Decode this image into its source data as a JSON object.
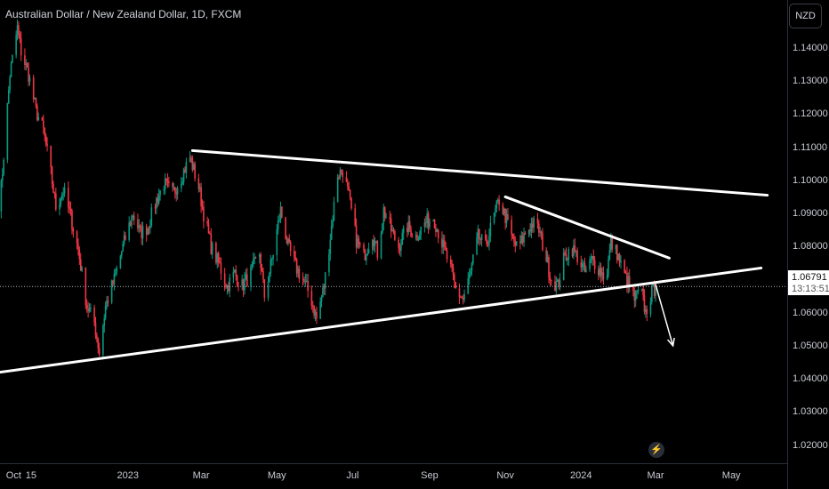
{
  "header": {
    "title": "Australian Dollar / New Zealand Dollar, 1D, FXCM",
    "currency": "NZD"
  },
  "price_tag": {
    "price": "1.06791",
    "countdown": "13:13:51"
  },
  "colors": {
    "up": "#089981",
    "down": "#f23645",
    "background": "#000000",
    "trendline": "#ffffff"
  },
  "icons": {
    "event": "lightning-icon"
  },
  "chart_data": {
    "type": "candlestick",
    "title": "Australian Dollar / New Zealand Dollar, 1D, FXCM",
    "xlabel": "",
    "ylabel": "",
    "x_ticks": [
      "Oct",
      "15",
      "2023",
      "Mar",
      "May",
      "Jul",
      "Sep",
      "Nov",
      "2024",
      "Mar",
      "May"
    ],
    "y_ticks": [
      "1.14000",
      "1.13000",
      "1.12000",
      "1.11000",
      "1.10000",
      "1.09000",
      "1.08000",
      "1.07000",
      "1.06000",
      "1.05000",
      "1.04000",
      "1.03000",
      "1.02000"
    ],
    "ylim": [
      1.0145,
      1.1545
    ],
    "xlim": [
      "2022-09-20",
      "2024-06-15"
    ],
    "grid": false,
    "last_price": 1.06791,
    "path": [
      [
        "2022-09-20",
        1.093
      ],
      [
        "2022-09-28",
        1.132
      ],
      [
        "2022-10-04",
        1.146
      ],
      [
        "2022-10-07",
        1.139
      ],
      [
        "2022-10-13",
        1.132
      ],
      [
        "2022-10-19",
        1.121
      ],
      [
        "2022-10-25",
        1.115
      ],
      [
        "2022-10-31",
        1.102
      ],
      [
        "2022-11-04",
        1.092
      ],
      [
        "2022-11-10",
        1.097
      ],
      [
        "2022-11-16",
        1.089
      ],
      [
        "2022-11-22",
        1.079
      ],
      [
        "2022-11-29",
        1.062
      ],
      [
        "2022-12-05",
        1.057
      ],
      [
        "2022-12-09",
        1.048
      ],
      [
        "2022-12-14",
        1.062
      ],
      [
        "2022-12-21",
        1.07
      ],
      [
        "2022-12-28",
        1.08
      ],
      [
        "2023-01-05",
        1.09
      ],
      [
        "2023-01-11",
        1.084
      ],
      [
        "2023-01-17",
        1.086
      ],
      [
        "2023-01-24",
        1.094
      ],
      [
        "2023-01-30",
        1.099
      ],
      [
        "2023-02-06",
        1.096
      ],
      [
        "2023-02-13",
        1.101
      ],
      [
        "2023-02-20",
        1.107
      ],
      [
        "2023-02-27",
        1.098
      ],
      [
        "2023-03-03",
        1.09
      ],
      [
        "2023-03-09",
        1.08
      ],
      [
        "2023-03-16",
        1.074
      ],
      [
        "2023-03-22",
        1.068
      ],
      [
        "2023-03-28",
        1.072
      ],
      [
        "2023-04-03",
        1.068
      ],
      [
        "2023-04-10",
        1.072
      ],
      [
        "2023-04-17",
        1.078
      ],
      [
        "2023-04-21",
        1.065
      ],
      [
        "2023-04-27",
        1.076
      ],
      [
        "2023-05-04",
        1.091
      ],
      [
        "2023-05-10",
        1.08
      ],
      [
        "2023-05-16",
        1.074
      ],
      [
        "2023-05-22",
        1.07
      ],
      [
        "2023-05-28",
        1.065
      ],
      [
        "2023-06-02",
        1.058
      ],
      [
        "2023-06-08",
        1.068
      ],
      [
        "2023-06-14",
        1.086
      ],
      [
        "2023-06-19",
        1.102
      ],
      [
        "2023-06-23",
        1.103
      ],
      [
        "2023-06-28",
        1.095
      ],
      [
        "2023-07-04",
        1.082
      ],
      [
        "2023-07-10",
        1.077
      ],
      [
        "2023-07-17",
        1.084
      ],
      [
        "2023-07-21",
        1.078
      ],
      [
        "2023-07-26",
        1.091
      ],
      [
        "2023-08-01",
        1.085
      ],
      [
        "2023-08-07",
        1.08
      ],
      [
        "2023-08-14",
        1.086
      ],
      [
        "2023-08-21",
        1.083
      ],
      [
        "2023-08-28",
        1.087
      ],
      [
        "2023-09-04",
        1.089
      ],
      [
        "2023-09-11",
        1.081
      ],
      [
        "2023-09-18",
        1.073
      ],
      [
        "2023-09-22",
        1.067
      ],
      [
        "2023-09-28",
        1.064
      ],
      [
        "2023-10-04",
        1.072
      ],
      [
        "2023-10-10",
        1.083
      ],
      [
        "2023-10-16",
        1.08
      ],
      [
        "2023-10-22",
        1.088
      ],
      [
        "2023-10-27",
        1.094
      ],
      [
        "2023-11-01",
        1.089
      ],
      [
        "2023-11-06",
        1.083
      ],
      [
        "2023-11-11",
        1.079
      ],
      [
        "2023-11-17",
        1.084
      ],
      [
        "2023-11-23",
        1.087
      ],
      [
        "2023-11-28",
        1.085
      ],
      [
        "2023-12-03",
        1.078
      ],
      [
        "2023-12-08",
        1.07
      ],
      [
        "2023-12-13",
        1.068
      ],
      [
        "2023-12-18",
        1.076
      ],
      [
        "2023-12-24",
        1.08
      ],
      [
        "2023-12-29",
        1.077
      ],
      [
        "2024-01-04",
        1.072
      ],
      [
        "2024-01-10",
        1.076
      ],
      [
        "2024-01-16",
        1.073
      ],
      [
        "2024-01-21",
        1.07
      ],
      [
        "2024-01-25",
        1.081
      ],
      [
        "2024-01-30",
        1.078
      ],
      [
        "2024-02-04",
        1.072
      ],
      [
        "2024-02-08",
        1.069
      ],
      [
        "2024-02-13",
        1.064
      ],
      [
        "2024-02-18",
        1.067
      ],
      [
        "2024-02-22",
        1.06
      ],
      [
        "2024-02-26",
        1.065
      ],
      [
        "2024-03-01",
        1.06791
      ]
    ],
    "trendlines": [
      {
        "name": "upper-resistance",
        "from": [
          "2023-02-22",
          1.109
        ],
        "to": [
          "2024-05-30",
          1.0955
        ]
      },
      {
        "name": "lower-support",
        "from": [
          "2022-09-20",
          1.042
        ],
        "to": [
          "2024-05-25",
          1.0735
        ]
      },
      {
        "name": "short-resistance",
        "from": [
          "2023-11-01",
          1.095
        ],
        "to": [
          "2024-03-12",
          1.0765
        ]
      },
      {
        "name": "projection-arrow",
        "from": [
          "2024-03-01",
          1.0685
        ],
        "to": [
          "2024-03-15",
          1.05
        ]
      }
    ]
  }
}
